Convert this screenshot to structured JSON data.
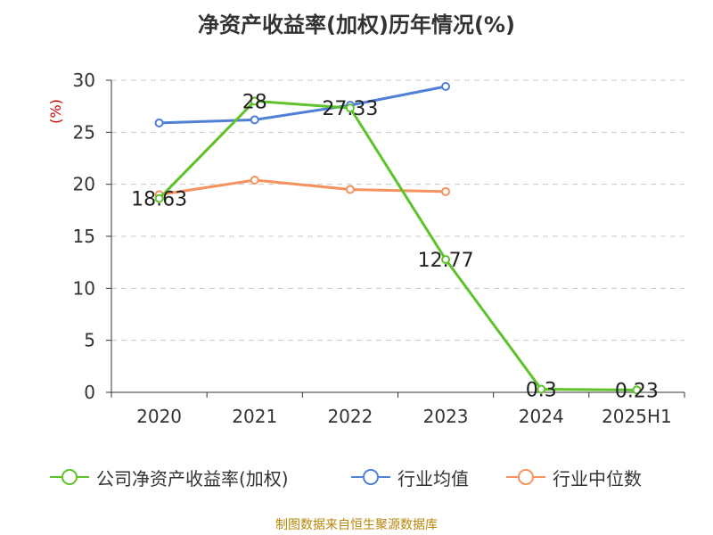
{
  "title": "净资产收益率(加权)历年情况(%)",
  "footer": "制图数据来自恒生聚源数据库",
  "chart_data": {
    "type": "line",
    "title": "净资产收益率(加权)历年情况(%)",
    "ylabel": "(%)",
    "ylim": [
      0,
      30
    ],
    "yticks": [
      0,
      5,
      10,
      15,
      20,
      25,
      30
    ],
    "categories": [
      "2020",
      "2021",
      "2022",
      "2023",
      "2024",
      "2025H1"
    ],
    "grid": true,
    "legend_position": "bottom",
    "series": [
      {
        "name": "公司净资产收益率(加权)",
        "color": "#5ec22a",
        "values": [
          18.63,
          28,
          27.33,
          12.77,
          0.3,
          0.23
        ],
        "labels": [
          "18.63",
          "28",
          "27.33",
          "12.77",
          "0.3",
          "0.23"
        ]
      },
      {
        "name": "行业均值",
        "color": "#4f7fd6",
        "values": [
          25.9,
          26.2,
          27.6,
          29.4,
          null,
          null
        ]
      },
      {
        "name": "行业中位数",
        "color": "#f5925e",
        "values": [
          19.0,
          20.4,
          19.5,
          19.3,
          null,
          null
        ]
      }
    ]
  }
}
